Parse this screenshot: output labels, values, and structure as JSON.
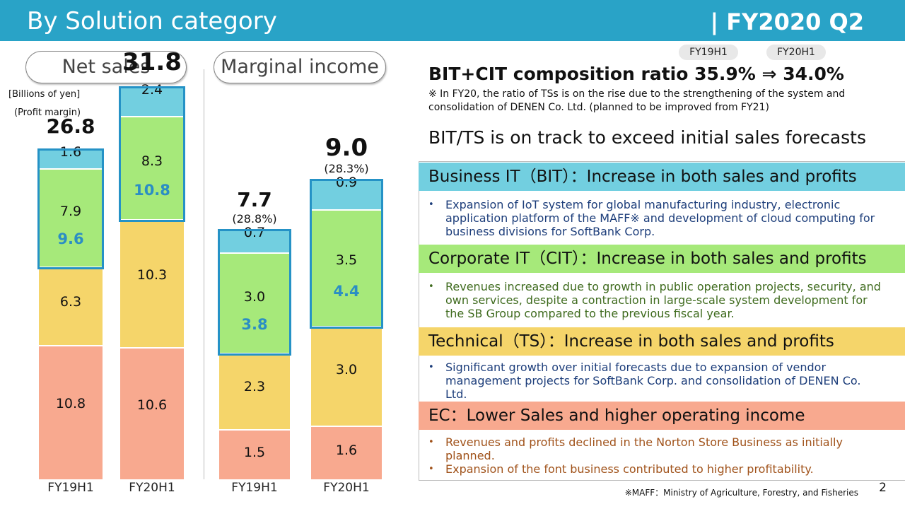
{
  "header": {
    "title": "By Solution category",
    "period": "| FY2020 Q2",
    "bg_color": "#29a3c7"
  },
  "left": {
    "net_sales_pill": "Net sales",
    "marginal_income_pill": "Marginal income",
    "unit_label": "[Billions of yen]",
    "margin_label": "(Profit margin)"
  },
  "chart_data": [
    {
      "type": "bar",
      "stacked": true,
      "title": "Net sales",
      "ylabel": "Billions of yen",
      "categories": [
        "FY19H1",
        "FY20H1"
      ],
      "series": [
        {
          "name": "EC",
          "color": "#f8a98f",
          "values": [
            10.8,
            10.6
          ],
          "labels": [
            "10.8",
            "10.6"
          ]
        },
        {
          "name": "Technical (TS)",
          "color": "#f5d56a",
          "values": [
            6.3,
            10.3
          ],
          "labels": [
            "6.3",
            "10.3"
          ]
        },
        {
          "name": "Corporate IT (CIT)",
          "color": "#a6e97a",
          "values": [
            7.9,
            8.3
          ],
          "labels": [
            "7.9",
            "8.3"
          ]
        },
        {
          "name": "Business IT (BIT)",
          "color": "#72cfe0",
          "values": [
            1.6,
            2.4
          ],
          "labels": [
            "1.6",
            "2.4"
          ]
        }
      ],
      "bit_cit_sum": [
        "9.6",
        "10.8"
      ],
      "totals": [
        "26.8",
        "31.8"
      ]
    },
    {
      "type": "bar",
      "stacked": true,
      "title": "Marginal income",
      "ylabel": "Billions of yen",
      "categories": [
        "FY19H1",
        "FY20H1"
      ],
      "series": [
        {
          "name": "EC",
          "color": "#f8a98f",
          "values": [
            1.5,
            1.6
          ],
          "labels": [
            "1.5",
            "1.6"
          ]
        },
        {
          "name": "Technical (TS)",
          "color": "#f5d56a",
          "values": [
            2.3,
            3.0
          ],
          "labels": [
            "2.3",
            "3.0"
          ]
        },
        {
          "name": "Corporate IT (CIT)",
          "color": "#a6e97a",
          "values": [
            3.0,
            3.5
          ],
          "labels": [
            "3.0",
            "3.5"
          ]
        },
        {
          "name": "Business IT (BIT)",
          "color": "#72cfe0",
          "values": [
            0.7,
            0.9
          ],
          "labels": [
            "0.7",
            "0.9"
          ]
        }
      ],
      "bit_cit_sum": [
        "3.8",
        "4.4"
      ],
      "totals": [
        "7.7",
        "9.0"
      ],
      "margins": [
        "(28.8%)",
        "(28.3%)"
      ]
    }
  ],
  "right": {
    "tag_fy19": "FY19H1",
    "tag_fy20": "FY20H1",
    "ratio_heading": "BIT+CIT composition ratio 35.9% ⇒ 34.0%",
    "ratio_note": "※ In FY20, the ratio of TSs is on the rise due to the strengthening of the system and consolidation of DENEN Co. Ltd. (planned to be improved from FY21)",
    "forecast_heading": "BIT/TS is on track to exceed initial sales forecasts",
    "bit_band": "Business IT（BIT）：Increase in both sales and profits",
    "bit_band_color": "#72cfe0",
    "bit_bullet": "Expansion of IoT system for global manufacturing industry, electronic application platform of the MAFF※ and development of cloud computing for business divisions for SoftBank Corp.",
    "bit_text_color": "#1c3d7a",
    "cit_band": "Corporate IT（CIT）：Increase in both sales and profits",
    "cit_band_color": "#a6e97a",
    "cit_bullet": "Revenues increased due to growth in public operation projects, security, and own services, despite a contraction in large-scale system development for the SB Group compared to the previous fiscal year.",
    "cit_text_color": "#3f6b1e",
    "ts_band": "Technical（TS）：Increase in both sales and profits",
    "ts_band_color": "#f5d56a",
    "ts_bullet": "Significant growth over initial forecasts due to expansion of vendor management projects for SoftBank Corp. and consolidation of DENEN Co. Ltd.",
    "ts_text_color": "#1c3d7a",
    "ec_band": "EC：Lower Sales and higher operating income",
    "ec_band_color": "#f8a98f",
    "ec_bullet_1": "Revenues and profits declined in the Norton Store Business as initially planned.",
    "ec_bullet_2": "Expansion of the font business contributed to higher profitability.",
    "ec_text_color": "#a0521a",
    "footnote": "※MAFF：Ministry of Agriculture, Forestry, and Fisheries",
    "page_number": "2"
  }
}
